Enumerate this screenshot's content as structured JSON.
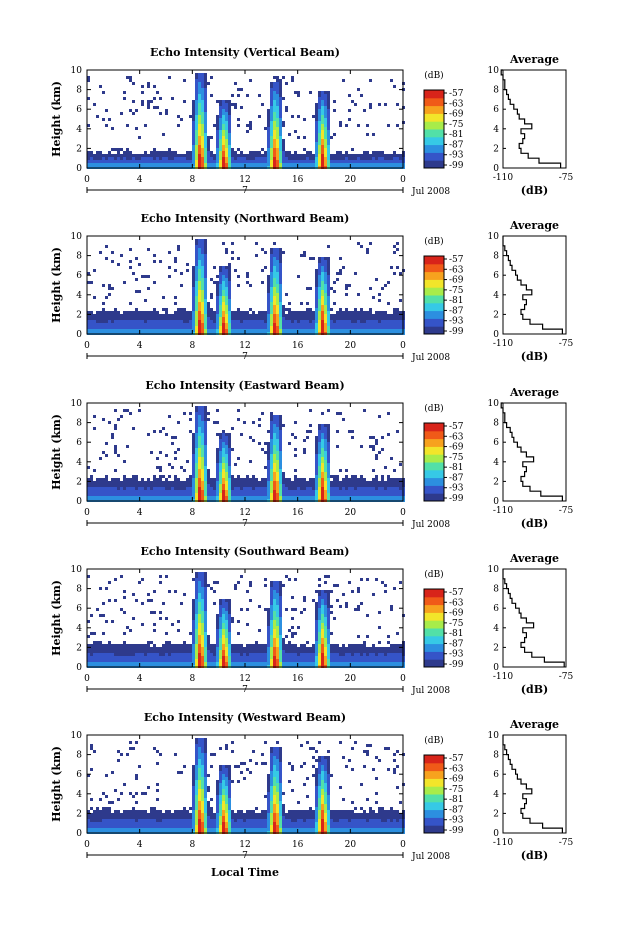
{
  "colors": {
    "colormap": [
      "#2e3a8c",
      "#3554c8",
      "#2c8fe0",
      "#36c9e6",
      "#52e0a8",
      "#a8ec4a",
      "#f2e52a",
      "#f7a21e",
      "#f05a18",
      "#d8241a"
    ],
    "background": "#ffffff"
  },
  "shared": {
    "xticks": [
      "0",
      "4",
      "8",
      "12",
      "16",
      "20",
      "0"
    ],
    "yticks": [
      "0",
      "2",
      "4",
      "6",
      "8",
      "10"
    ],
    "ylabel": "Height (km)",
    "date_label": "Jul 2008",
    "day_label": "7",
    "colorbar_title": "(dB)",
    "colorbar_ticks": [
      "-57",
      "-63",
      "-69",
      "-75",
      "-81",
      "-87",
      "-93",
      "-99"
    ],
    "avg_title": "Average",
    "avg_xticks": [
      "-110",
      "-75"
    ],
    "avg_xlabel": "(dB)",
    "xlabel": "Local Time"
  },
  "panels": [
    {
      "title": "Echo Intensity (Vertical Beam)"
    },
    {
      "title": "Echo Intensity (Northward Beam)"
    },
    {
      "title": "Echo Intensity (Eastward Beam)"
    },
    {
      "title": "Echo Intensity (Southward Beam)"
    },
    {
      "title": "Echo Intensity (Westward Beam)"
    }
  ],
  "chart_data": [
    {
      "type": "heatmap",
      "title": "Echo Intensity (Vertical Beam)",
      "xlabel": "",
      "ylabel": "Height (km)",
      "xlim": [
        0,
        24
      ],
      "ylim": [
        0,
        10
      ],
      "x_unit": "hour (local time, 7 Jul 2008)",
      "colorbar": {
        "label": "(dB)",
        "ticks": [
          -57,
          -63,
          -69,
          -75,
          -81,
          -87,
          -93,
          -99
        ]
      },
      "features": [
        {
          "name": "boundary layer",
          "x": [
            0,
            24
          ],
          "top_km": 1.8
        },
        {
          "name": "convective echo",
          "x_center": 8.5,
          "top_km": 10
        },
        {
          "name": "convective echo",
          "x_center": 10.3,
          "top_km": 7
        },
        {
          "name": "convective echo",
          "x_center": 14.2,
          "top_km": 9
        },
        {
          "name": "convective echo",
          "x_center": 17.8,
          "top_km": 8
        }
      ],
      "average_profile": {
        "title": "Average",
        "xlabel": "(dB)",
        "xlim": [
          -110,
          -75
        ],
        "height_km": [
          0,
          0.5,
          1,
          1.5,
          2,
          2.5,
          3,
          3.5,
          4,
          4.5,
          5,
          5.5,
          6,
          6.5,
          7,
          7.5,
          8,
          8.5,
          9,
          9.5,
          10
        ],
        "db": [
          -78,
          -90,
          -96,
          -100,
          -101,
          -99,
          -98,
          -100,
          -94,
          -98,
          -101,
          -102,
          -104,
          -106,
          -107,
          -108,
          -109,
          -109,
          -110,
          -111,
          -110
        ]
      }
    },
    {
      "type": "heatmap",
      "title": "Echo Intensity (Northward Beam)",
      "xlabel": "",
      "ylabel": "Height (km)",
      "xlim": [
        0,
        24
      ],
      "ylim": [
        0,
        10
      ],
      "x_unit": "hour (local time, 7 Jul 2008)",
      "colorbar": {
        "label": "(dB)",
        "ticks": [
          -57,
          -63,
          -69,
          -75,
          -81,
          -87,
          -93,
          -99
        ]
      },
      "features": [
        {
          "name": "boundary layer",
          "x": [
            0,
            24
          ],
          "top_km": 2.5
        },
        {
          "name": "convective echo",
          "x_center": 8.5,
          "top_km": 10
        },
        {
          "name": "convective echo",
          "x_center": 10.3,
          "top_km": 7
        },
        {
          "name": "convective echo",
          "x_center": 14.2,
          "top_km": 9
        },
        {
          "name": "convective echo",
          "x_center": 17.8,
          "top_km": 8
        }
      ],
      "average_profile": {
        "title": "Average",
        "xlabel": "(dB)",
        "xlim": [
          -110,
          -75
        ],
        "height_km": [
          0,
          0.5,
          1,
          1.5,
          2,
          2.5,
          3,
          3.5,
          4,
          4.5,
          5,
          5.5,
          6,
          6.5,
          7,
          7.5,
          8,
          8.5,
          9,
          9.5,
          10
        ],
        "db": [
          -77,
          -88,
          -95,
          -99,
          -100,
          -98,
          -97,
          -99,
          -94,
          -97,
          -100,
          -102,
          -103,
          -105,
          -106,
          -107,
          -108,
          -109,
          -110,
          -110,
          -110
        ]
      }
    },
    {
      "type": "heatmap",
      "title": "Echo Intensity (Eastward Beam)",
      "xlabel": "",
      "ylabel": "Height (km)",
      "xlim": [
        0,
        24
      ],
      "ylim": [
        0,
        10
      ],
      "x_unit": "hour (local time, 7 Jul 2008)",
      "colorbar": {
        "label": "(dB)",
        "ticks": [
          -57,
          -63,
          -69,
          -75,
          -81,
          -87,
          -93,
          -99
        ]
      },
      "features": [
        {
          "name": "boundary layer",
          "x": [
            0,
            24
          ],
          "top_km": 2.5
        },
        {
          "name": "convective echo",
          "x_center": 8.5,
          "top_km": 10
        },
        {
          "name": "convective echo",
          "x_center": 10.3,
          "top_km": 7
        },
        {
          "name": "convective echo",
          "x_center": 14.2,
          "top_km": 9
        },
        {
          "name": "convective echo",
          "x_center": 17.8,
          "top_km": 8
        }
      ],
      "average_profile": {
        "title": "Average",
        "xlabel": "(dB)",
        "xlim": [
          -110,
          -75
        ],
        "height_km": [
          0,
          0.5,
          1,
          1.5,
          2,
          2.5,
          3,
          3.5,
          4,
          4.5,
          5,
          5.5,
          6,
          6.5,
          7,
          7.5,
          8,
          8.5,
          9,
          9.5,
          10
        ],
        "db": [
          -77,
          -89,
          -95,
          -99,
          -100,
          -98,
          -97,
          -99,
          -93,
          -97,
          -100,
          -102,
          -104,
          -105,
          -106,
          -108,
          -109,
          -109,
          -110,
          -111,
          -110
        ]
      }
    },
    {
      "type": "heatmap",
      "title": "Echo Intensity (Southward Beam)",
      "xlabel": "",
      "ylabel": "Height (km)",
      "xlim": [
        0,
        24
      ],
      "ylim": [
        0,
        10
      ],
      "x_unit": "hour (local time, 7 Jul 2008)",
      "colorbar": {
        "label": "(dB)",
        "ticks": [
          -57,
          -63,
          -69,
          -75,
          -81,
          -87,
          -93,
          -99
        ]
      },
      "features": [
        {
          "name": "boundary layer",
          "x": [
            0,
            24
          ],
          "top_km": 2.5
        },
        {
          "name": "convective echo",
          "x_center": 8.5,
          "top_km": 10
        },
        {
          "name": "convective echo",
          "x_center": 10.3,
          "top_km": 7
        },
        {
          "name": "convective echo",
          "x_center": 14.2,
          "top_km": 9
        },
        {
          "name": "convective echo",
          "x_center": 17.8,
          "top_km": 8
        }
      ],
      "average_profile": {
        "title": "Average",
        "xlabel": "(dB)",
        "xlim": [
          -110,
          -75
        ],
        "height_km": [
          0,
          0.5,
          1,
          1.5,
          2,
          2.5,
          3,
          3.5,
          4,
          4.5,
          5,
          5.5,
          6,
          6.5,
          7,
          7.5,
          8,
          8.5,
          9,
          9.5,
          10
        ],
        "db": [
          -76,
          -87,
          -94,
          -98,
          -100,
          -98,
          -97,
          -99,
          -93,
          -97,
          -100,
          -101,
          -103,
          -105,
          -106,
          -107,
          -108,
          -109,
          -110,
          -110,
          -110
        ]
      }
    },
    {
      "type": "heatmap",
      "title": "Echo Intensity (Westward Beam)",
      "xlabel": "Local Time",
      "ylabel": "Height (km)",
      "xlim": [
        0,
        24
      ],
      "ylim": [
        0,
        10
      ],
      "x_unit": "hour (local time, 7 Jul 2008)",
      "colorbar": {
        "label": "(dB)",
        "ticks": [
          -57,
          -63,
          -69,
          -75,
          -81,
          -87,
          -93,
          -99
        ]
      },
      "features": [
        {
          "name": "boundary layer",
          "x": [
            0,
            24
          ],
          "top_km": 2.5
        },
        {
          "name": "convective echo",
          "x_center": 8.5,
          "top_km": 10
        },
        {
          "name": "convective echo",
          "x_center": 10.3,
          "top_km": 7
        },
        {
          "name": "convective echo",
          "x_center": 14.2,
          "top_km": 9
        },
        {
          "name": "convective echo",
          "x_center": 17.8,
          "top_km": 8
        }
      ],
      "average_profile": {
        "title": "Average",
        "xlabel": "(dB)",
        "xlim": [
          -110,
          -75
        ],
        "height_km": [
          0,
          0.5,
          1,
          1.5,
          2,
          2.5,
          3,
          3.5,
          4,
          4.5,
          5,
          5.5,
          6,
          6.5,
          7,
          7.5,
          8,
          8.5,
          9,
          9.5,
          10
        ],
        "db": [
          -77,
          -88,
          -95,
          -99,
          -100,
          -98,
          -97,
          -99,
          -94,
          -97,
          -100,
          -102,
          -103,
          -105,
          -106,
          -107,
          -108,
          -109,
          -110,
          -110,
          -110
        ]
      }
    }
  ]
}
